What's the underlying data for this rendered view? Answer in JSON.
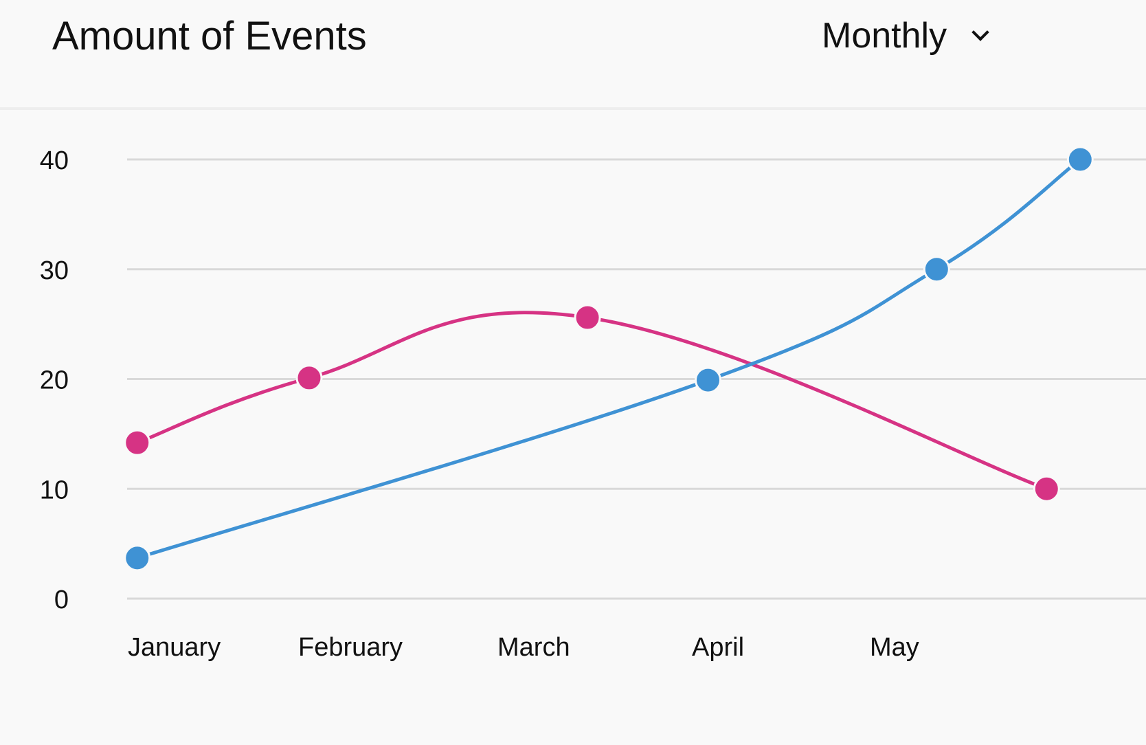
{
  "header": {
    "title": "Amount of Events",
    "period_select": {
      "selected": "Monthly",
      "icon": "chevron-down-icon"
    }
  },
  "chart_data": {
    "type": "line",
    "title": "Amount of Events",
    "xlabel": "",
    "ylabel": "",
    "categories": [
      "January",
      "February",
      "March",
      "April",
      "May"
    ],
    "ylim": [
      0,
      40
    ],
    "yticks": [
      0,
      10,
      20,
      30,
      40
    ],
    "grid": true,
    "smooth": true,
    "series": [
      {
        "color": "#d63384",
        "points": [
          {
            "x": 0.03,
            "y": 14.2
          },
          {
            "x": 1.0,
            "y": 20.1
          },
          {
            "x": 2.57,
            "y": 25.6
          },
          {
            "x": 5.16,
            "y": 10.0
          }
        ]
      },
      {
        "color": "#3f92d4",
        "points": [
          {
            "x": 0.03,
            "y": 3.7
          },
          {
            "x": 3.25,
            "y": 19.9
          },
          {
            "x": 4.54,
            "y": 30.0
          },
          {
            "x": 5.35,
            "y": 40.0
          }
        ]
      }
    ]
  }
}
